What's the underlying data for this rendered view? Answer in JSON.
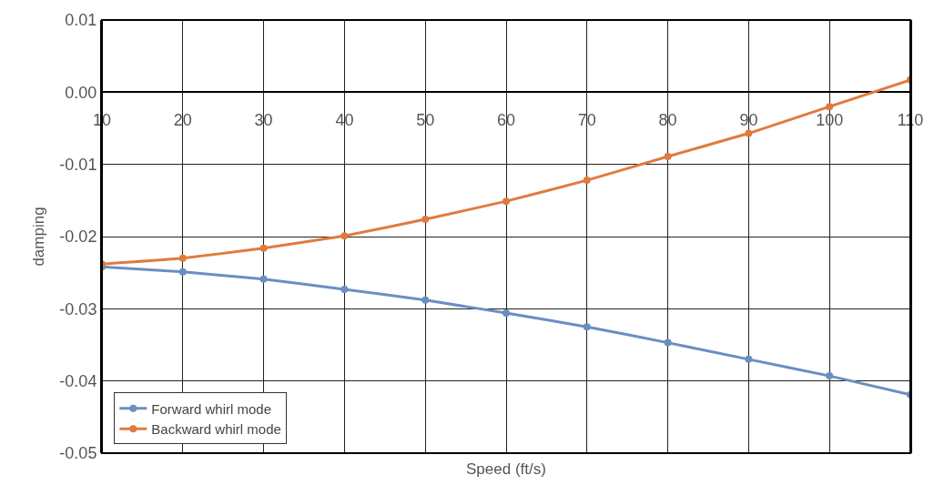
{
  "chart_data": {
    "type": "line",
    "xlabel": "Speed (ft/s)",
    "ylabel": "damping",
    "x": [
      10,
      20,
      30,
      40,
      50,
      60,
      70,
      80,
      90,
      100,
      110
    ],
    "series": [
      {
        "name": "Forward whirl mode",
        "color": "#6a8fc0",
        "values": [
          -0.0242,
          -0.0249,
          -0.0259,
          -0.0273,
          -0.0288,
          -0.0306,
          -0.0325,
          -0.0347,
          -0.037,
          -0.0393,
          -0.0419
        ]
      },
      {
        "name": "Backward whirl mode",
        "color": "#e07b3e",
        "values": [
          -0.0238,
          -0.023,
          -0.0216,
          -0.0199,
          -0.0176,
          -0.0151,
          -0.0122,
          -0.0089,
          -0.0057,
          -0.002,
          0.0017
        ]
      }
    ],
    "xlim": [
      10,
      110
    ],
    "xticks": [
      10,
      20,
      30,
      40,
      50,
      60,
      70,
      80,
      90,
      100,
      110
    ],
    "ylim": [
      -0.05,
      0.01
    ],
    "yticks": [
      {
        "value": -0.05,
        "label": "-0.05"
      },
      {
        "value": -0.04,
        "label": "-0.04"
      },
      {
        "value": -0.03,
        "label": "-0.03"
      },
      {
        "value": -0.02,
        "label": "-0.02"
      },
      {
        "value": -0.01,
        "label": "-0.01"
      },
      {
        "value": 0,
        "label": "0.00"
      },
      {
        "value": 0.01,
        "label": "0.01"
      }
    ],
    "grid": true,
    "legend": "bottom left",
    "marker": "circle",
    "line_style": "solid"
  }
}
